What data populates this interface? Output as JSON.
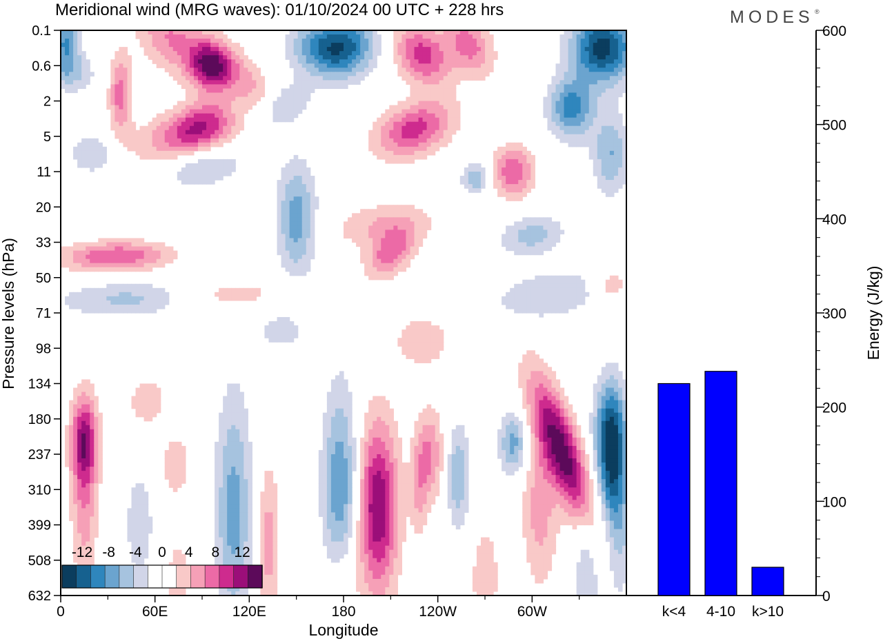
{
  "header": {
    "title": "Meridional wind (MRG waves):  01/10/2024  00 UTC  + 228 hrs",
    "logo": "MODES",
    "logo_mark": "®"
  },
  "colors": {
    "neg": [
      "#0b3d5e",
      "#16618f",
      "#2f86bd",
      "#6ba4cf",
      "#a6c3df",
      "#d1d5e8"
    ],
    "zero": "#ffffff",
    "pos": [
      "#f9c9c8",
      "#f6a0b7",
      "#ec6aa6",
      "#ce2b8e",
      "#9b0e79",
      "#5c0a5a"
    ],
    "bar": "#0000ff"
  },
  "chart_data": [
    {
      "type": "heatmap",
      "title": "Meridional wind (MRG waves):  01/10/2024  00 UTC  + 228 hrs",
      "xlabel": "Longitude",
      "ylabel": "Pressure levels (hPa)",
      "x_ticks": [
        "0",
        "60E",
        "120E",
        "180",
        "120W",
        "60W"
      ],
      "x_tick_values": [
        0,
        60,
        120,
        180,
        240,
        300
      ],
      "xlim": [
        0,
        360
      ],
      "y_ticks": [
        "0.1",
        "0.6",
        "2",
        "5",
        "11",
        "20",
        "33",
        "50",
        "71",
        "98",
        "134",
        "180",
        "237",
        "310",
        "399",
        "508",
        "632"
      ],
      "colorbar": {
        "labels": [
          "-12",
          "-8",
          "-4",
          "0",
          "4",
          "8",
          "12"
        ],
        "levels": [
          -14,
          -12,
          -10,
          -8,
          -6,
          -4,
          -2,
          0,
          2,
          4,
          6,
          8,
          10,
          12,
          14
        ]
      },
      "features": [
        {
          "lon": 96,
          "lev": 1.0,
          "sx": 10,
          "sy": 0.5,
          "amp": 13,
          "rot": 0.1
        },
        {
          "lon": 70,
          "lev": 0.2,
          "sx": 14,
          "sy": 0.7,
          "amp": 6,
          "rot": 0.2
        },
        {
          "lon": 120,
          "lev": 1.5,
          "sx": 9,
          "sy": 0.6,
          "amp": 4,
          "rot": 0.3
        },
        {
          "lon": 38,
          "lev": 1.8,
          "sx": 5,
          "sy": 0.8,
          "amp": 7,
          "rot": 0
        },
        {
          "lon": 82,
          "lev": 3.0,
          "sx": 22,
          "sy": 0.55,
          "amp": 7,
          "rot": -0.45
        },
        {
          "lon": 90,
          "lev": 2.6,
          "sx": 12,
          "sy": 0.5,
          "amp": 5,
          "rot": -0.3
        },
        {
          "lon": 90,
          "lev": 3.8,
          "sx": 18,
          "sy": 0.45,
          "amp": -5,
          "rot": -0.35
        },
        {
          "lon": 20,
          "lev": 3.5,
          "sx": 10,
          "sy": 0.4,
          "amp": -4,
          "rot": 0
        },
        {
          "lon": 3,
          "lev": 0.3,
          "sx": 6,
          "sy": 0.6,
          "amp": -8,
          "rot": 0
        },
        {
          "lon": 8,
          "lev": 1.2,
          "sx": 10,
          "sy": 0.4,
          "amp": -4,
          "rot": 0
        },
        {
          "lon": 140,
          "lev": 2.2,
          "sx": 12,
          "sy": 0.5,
          "amp": -4,
          "rot": -0.4
        },
        {
          "lon": 180,
          "lev": 0.5,
          "sx": 14,
          "sy": 0.6,
          "amp": -11,
          "rot": -0.1
        },
        {
          "lon": 160,
          "lev": 0.4,
          "sx": 12,
          "sy": 0.5,
          "amp": -5,
          "rot": 0
        },
        {
          "lon": 230,
          "lev": 0.7,
          "sx": 12,
          "sy": 0.6,
          "amp": 9,
          "rot": 0.2
        },
        {
          "lon": 260,
          "lev": 0.4,
          "sx": 10,
          "sy": 0.6,
          "amp": 7,
          "rot": 0.2
        },
        {
          "lon": 225,
          "lev": 2.8,
          "sx": 16,
          "sy": 0.55,
          "amp": 9,
          "rot": -0.35
        },
        {
          "lon": 288,
          "lev": 4.0,
          "sx": 9,
          "sy": 0.5,
          "amp": 8,
          "rot": 0
        },
        {
          "lon": 345,
          "lev": 0.5,
          "sx": 14,
          "sy": 0.7,
          "amp": -13,
          "rot": 0
        },
        {
          "lon": 325,
          "lev": 2.2,
          "sx": 10,
          "sy": 0.6,
          "amp": -9,
          "rot": 0
        },
        {
          "lon": 350,
          "lev": 3.5,
          "sx": 8,
          "sy": 0.8,
          "amp": -6,
          "rot": 0
        },
        {
          "lon": 264,
          "lev": 4.2,
          "sx": 6,
          "sy": 0.3,
          "amp": -6,
          "rot": 0
        },
        {
          "lon": 150,
          "lev": 4.9,
          "sx": 9,
          "sy": 1.0,
          "amp": -4,
          "rot": 0
        },
        {
          "lon": 205,
          "lev": 5.5,
          "sx": 22,
          "sy": 0.45,
          "amp": 4,
          "rot": -0.35
        },
        {
          "lon": 210,
          "lev": 6.3,
          "sx": 10,
          "sy": 0.5,
          "amp": 7,
          "rot": -0.3
        },
        {
          "lon": 300,
          "lev": 5.8,
          "sx": 14,
          "sy": 0.4,
          "amp": -5,
          "rot": -0.2
        },
        {
          "lon": 350,
          "lev": 7.2,
          "sx": 8,
          "sy": 0.3,
          "amp": 4,
          "rot": 0
        },
        {
          "lon": 35,
          "lev": 6.4,
          "sx": 24,
          "sy": 0.3,
          "amp": 8,
          "rot": -0.25
        },
        {
          "lon": 50,
          "lev": 7.6,
          "sx": 35,
          "sy": 0.35,
          "amp": -5,
          "rot": -0.35
        },
        {
          "lon": 100,
          "lev": 7.5,
          "sx": 28,
          "sy": 0.35,
          "amp": 4,
          "rot": -0.4
        },
        {
          "lon": 150,
          "lev": 5.8,
          "sx": 8,
          "sy": 1.0,
          "amp": -4,
          "rot": 0
        },
        {
          "lon": 230,
          "lev": 8.8,
          "sx": 12,
          "sy": 0.5,
          "amp": 4,
          "rot": 0
        },
        {
          "lon": 310,
          "lev": 7.5,
          "sx": 25,
          "sy": 0.5,
          "amp": -4,
          "rot": -0.5
        },
        {
          "lon": 140,
          "lev": 8.5,
          "sx": 9,
          "sy": 0.3,
          "amp": -4,
          "rot": 0
        },
        {
          "lon": 55,
          "lev": 10.5,
          "sx": 8,
          "sy": 0.45,
          "amp": 4,
          "rot": 0
        },
        {
          "lon": 15,
          "lev": 11.6,
          "sx": 6,
          "sy": 0.9,
          "amp": 10,
          "rot": 0
        },
        {
          "lon": 15,
          "lev": 13.5,
          "sx": 6,
          "sy": 1.6,
          "amp": 5,
          "rot": 0
        },
        {
          "lon": 50,
          "lev": 14.0,
          "sx": 6,
          "sy": 1.0,
          "amp": -4,
          "rot": 0
        },
        {
          "lon": 110,
          "lev": 13.6,
          "sx": 8,
          "sy": 2.3,
          "amp": -7,
          "rot": 0
        },
        {
          "lon": 132,
          "lev": 14.5,
          "sx": 5,
          "sy": 1.6,
          "amp": 5,
          "rot": 0
        },
        {
          "lon": 73,
          "lev": 12.3,
          "sx": 6,
          "sy": 0.6,
          "amp": 4,
          "rot": 0
        },
        {
          "lon": 75,
          "lev": 15.5,
          "sx": 5,
          "sy": 0.7,
          "amp": 4,
          "rot": 0
        },
        {
          "lon": 178,
          "lev": 13.0,
          "sx": 8,
          "sy": 2.0,
          "amp": -8,
          "rot": 0
        },
        {
          "lon": 202,
          "lev": 13.5,
          "sx": 9,
          "sy": 1.7,
          "amp": 12,
          "rot": 0
        },
        {
          "lon": 180,
          "lev": 15.5,
          "sx": 8,
          "sy": 1.0,
          "amp": 3,
          "rot": 0
        },
        {
          "lon": 235,
          "lev": 12.0,
          "sx": 6,
          "sy": 0.9,
          "amp": 6,
          "rot": 0
        },
        {
          "lon": 228,
          "lev": 13.0,
          "sx": 4,
          "sy": 1.0,
          "amp": 4,
          "rot": 0
        },
        {
          "lon": 253,
          "lev": 12.6,
          "sx": 5,
          "sy": 1.0,
          "amp": -6,
          "rot": 0
        },
        {
          "lon": 288,
          "lev": 11.7,
          "sx": 6,
          "sy": 0.6,
          "amp": -7,
          "rot": 0
        },
        {
          "lon": 320,
          "lev": 12.0,
          "sx": 9,
          "sy": 1.5,
          "amp": 13,
          "rot": 0.25
        },
        {
          "lon": 305,
          "lev": 13.5,
          "sx": 8,
          "sy": 1.6,
          "amp": 5,
          "rot": 0
        },
        {
          "lon": 350,
          "lev": 11.2,
          "sx": 7,
          "sy": 1.0,
          "amp": -10,
          "rot": 0
        },
        {
          "lon": 350,
          "lev": 12.6,
          "sx": 6,
          "sy": 1.0,
          "amp": -7,
          "rot": 0
        },
        {
          "lon": 355,
          "lev": 14.0,
          "sx": 6,
          "sy": 1.5,
          "amp": -5,
          "rot": 0
        },
        {
          "lon": 335,
          "lev": 15.0,
          "sx": 6,
          "sy": 1.5,
          "amp": -4,
          "rot": 0
        },
        {
          "lon": 270,
          "lev": 15.5,
          "sx": 6,
          "sy": 1.0,
          "amp": 4,
          "rot": 0
        }
      ]
    },
    {
      "type": "bar",
      "categories": [
        "k<4",
        "4-10",
        "k>10"
      ],
      "values": [
        225,
        238,
        30
      ],
      "ylabel": "Energy (J/kg)",
      "ylim": [
        0,
        600
      ],
      "y_ticks": [
        0,
        100,
        200,
        300,
        400,
        500,
        600
      ]
    }
  ]
}
